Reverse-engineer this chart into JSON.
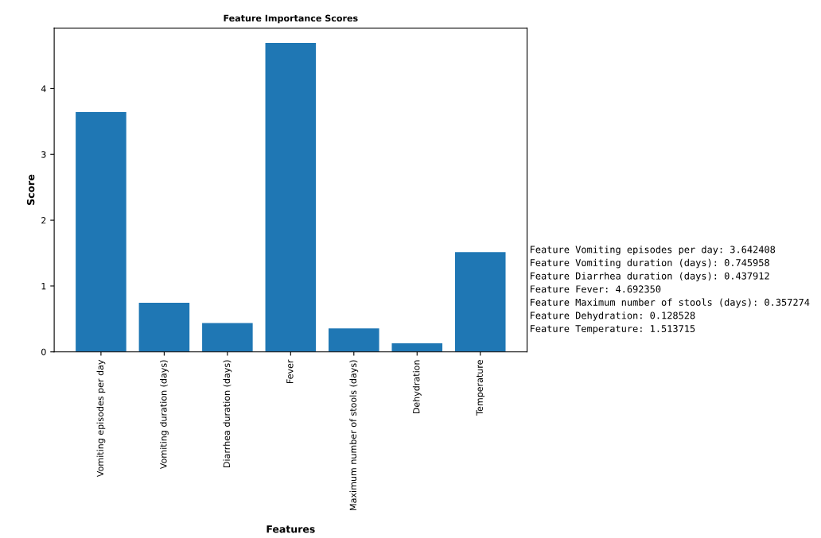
{
  "chart_data": {
    "type": "bar",
    "title": "Feature Importance Scores",
    "xlabel": "Features",
    "ylabel": "Score",
    "categories": [
      "Vomiting episodes per day",
      "Vomiting duration (days)",
      "Diarrhea duration (days)",
      "Fever",
      "Maximum number of stools (days)",
      "Dehydration",
      "Temperature"
    ],
    "values": [
      3.642408,
      0.745958,
      0.437912,
      4.69235,
      0.357274,
      0.128528,
      1.513715
    ],
    "color": "#1f77b4",
    "ylim": [
      0,
      4.92
    ],
    "yticks": [
      0,
      1,
      2,
      3,
      4
    ],
    "grid": false,
    "annotations": [
      "Feature Vomiting episodes per day: 3.642408",
      "Feature Vomiting duration (days): 0.745958",
      "Feature Diarrhea duration (days): 0.437912",
      "Feature Fever: 4.692350",
      "Feature Maximum number of stools (days): 0.357274",
      "Feature Dehydration: 0.128528",
      "Feature Temperature: 1.513715"
    ]
  }
}
